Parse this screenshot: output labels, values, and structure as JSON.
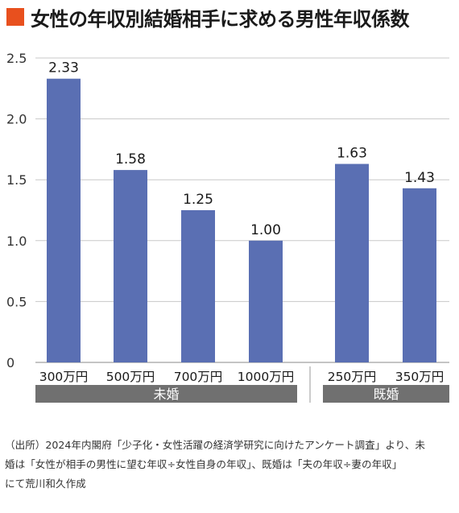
{
  "title": "女性の年収別結婚相手に求める男性年収係数",
  "colors": {
    "accent": "#e8501e",
    "bar": "#5a6fb3",
    "group_band": "#707070",
    "grid": "#c8c8c8"
  },
  "chart_data": {
    "type": "bar",
    "title": "女性の年収別結婚相手に求める男性年収係数",
    "categories": [
      "300万円",
      "500万円",
      "700万円",
      "1000万円",
      "250万円",
      "350万円"
    ],
    "values": [
      2.33,
      1.58,
      1.25,
      1.0,
      1.63,
      1.43
    ],
    "value_labels": [
      "2.33",
      "1.58",
      "1.25",
      "1.00",
      "1.63",
      "1.43"
    ],
    "groups": [
      {
        "label": "未婚",
        "categories": [
          "300万円",
          "500万円",
          "700万円",
          "1000万円"
        ]
      },
      {
        "label": "既婚",
        "categories": [
          "250万円",
          "350万円"
        ]
      }
    ],
    "yticks": [
      {
        "value": 0,
        "label": "0"
      },
      {
        "value": 0.5,
        "label": "0.5"
      },
      {
        "value": 1.0,
        "label": "1.0"
      },
      {
        "value": 1.5,
        "label": "1.5"
      },
      {
        "value": 2.0,
        "label": "2.0"
      },
      {
        "value": 2.5,
        "label": "2.5"
      }
    ],
    "ylim": [
      0,
      2.5
    ],
    "grid": true,
    "xlabel": "",
    "ylabel": ""
  },
  "footnote": "（出所）2024年内閣府「少子化・女性活躍の経済学研究に向けたアンケート調査」より、未\n婚は「女性が相手の男性に望む年収÷女性自身の年収」、既婚は「夫の年収÷妻の年収」\nにて荒川和久作成"
}
